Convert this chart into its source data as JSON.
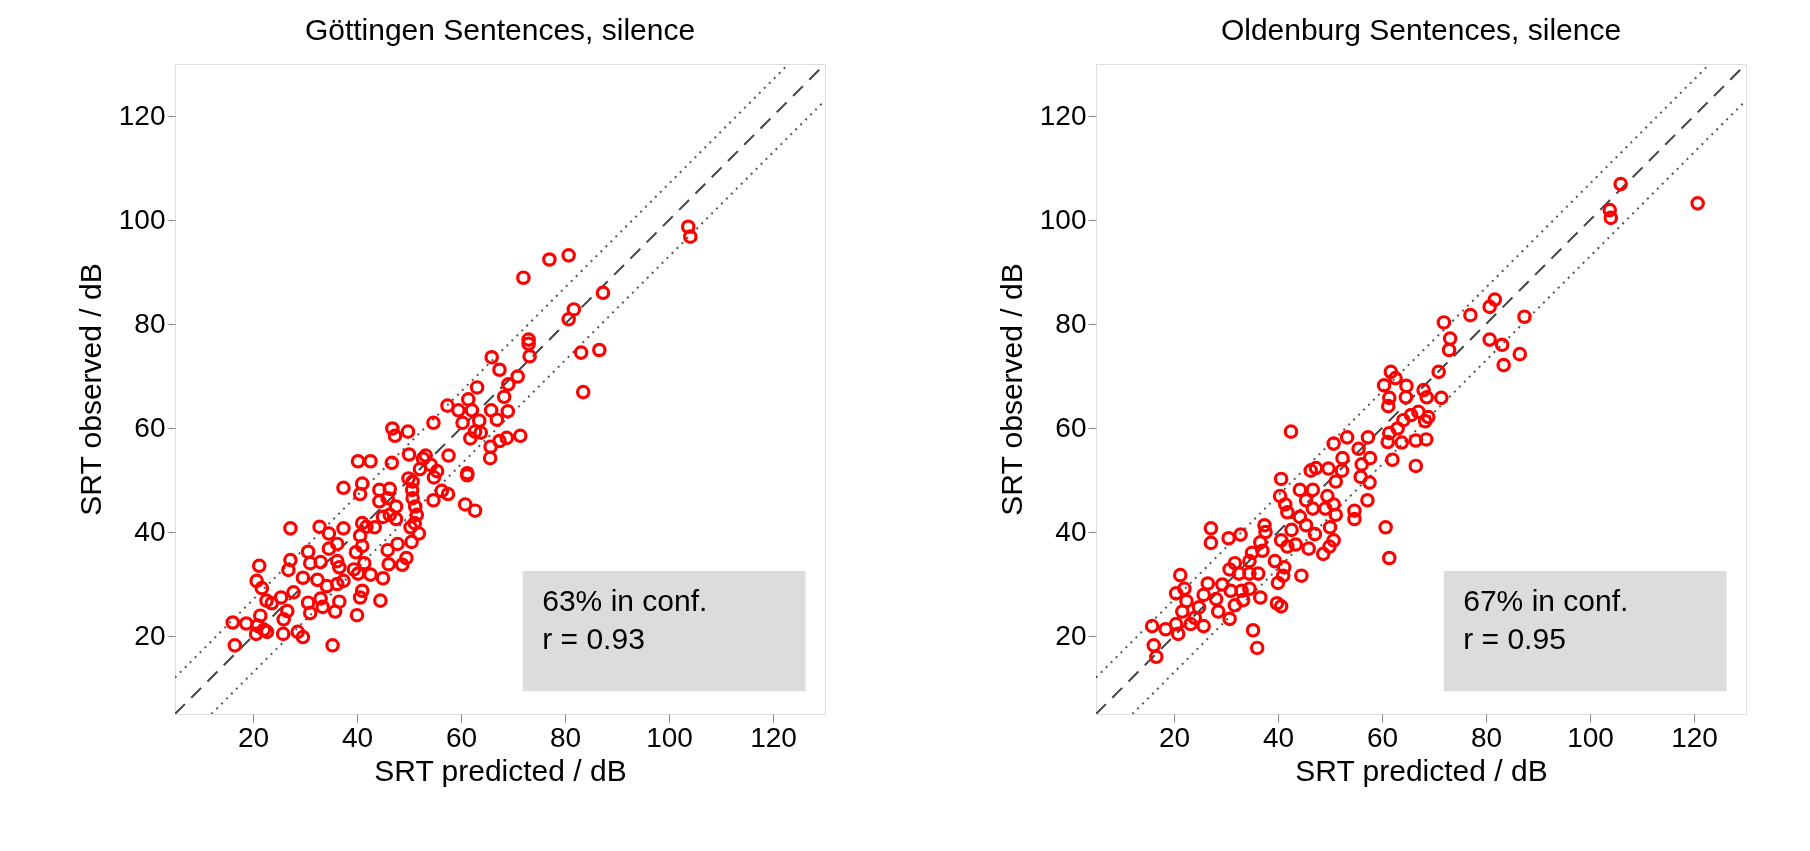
{
  "chart_data": [
    {
      "type": "scatter",
      "title": "Göttingen Sentences, silence",
      "xlabel": "SRT predicted / dB",
      "ylabel": "SRT observed / dB",
      "xlim": [
        5,
        130
      ],
      "ylim": [
        5,
        130
      ],
      "xticks": [
        20,
        40,
        60,
        80,
        100,
        120
      ],
      "yticks": [
        20,
        40,
        60,
        80,
        100,
        120
      ],
      "grid": false,
      "annotations": [
        "63% in conf.\nr =  0.93"
      ],
      "series": [
        {
          "type": "line",
          "color": "#444444",
          "line_style": "dashed",
          "x": [
            5,
            130
          ],
          "values": [
            5,
            130
          ]
        },
        {
          "type": "line",
          "color": "#555555",
          "line_style": "dotted",
          "x": [
            5,
            123
          ],
          "values": [
            12,
            130
          ]
        },
        {
          "type": "line",
          "color": "#555555",
          "line_style": "dotted",
          "x": [
            12,
            130
          ],
          "values": [
            5,
            123
          ]
        },
        {
          "type": "scatter",
          "color": "#ff0000",
          "marker": "circle",
          "x": [
            103.7,
            104.1,
            77.0,
            80.7,
            72.0,
            87.3,
            81.7,
            80.7,
            73.0,
            73.0,
            73.2,
            83.1,
            86.6,
            83.5,
            65.9,
            67.4,
            70.9,
            69.1,
            63.1,
            68.3,
            57.4,
            61.4,
            59.5,
            62.1,
            60.3,
            63.5,
            62.7,
            61.8,
            63.8,
            65.8,
            69.0,
            66.9,
            71.4,
            68.8,
            67.4,
            65.7,
            65.6,
            54.7,
            46.8,
            47.3,
            49.8,
            40.2,
            42.6,
            46.7,
            50.0,
            52.7,
            53.2,
            57.6,
            54.2,
            55.4,
            52.1,
            49.9,
            50.7,
            54.8,
            61.2,
            61.2,
            41.0,
            37.4,
            40.6,
            44.3,
            46.3,
            45.9,
            44.3,
            47.5,
            50.6,
            50.7,
            51.2,
            54.7,
            56.3,
            57.5,
            60.8,
            62.7,
            46.3,
            45.0,
            47.5,
            51.5,
            51.1,
            50.3,
            51.9,
            50.5,
            47.8,
            45.9,
            49.5,
            48.7,
            46.1,
            45.0,
            44.5,
            27.2,
            32.8,
            34.6,
            37.4,
            41.0,
            41.8,
            43.4,
            40.6,
            39.8,
            41.0,
            34.6,
            36.2,
            30.6,
            27.2,
            31.0,
            33.0,
            36.2,
            36.6,
            41.4,
            39.4,
            40.2,
            42.6,
            37.4,
            36.2,
            29.6,
            32.4,
            26.8,
            21.2,
            20.7,
            21.7,
            22.6,
            25.4,
            27.8,
            30.6,
            33.0,
            34.2,
            36.6,
            41.0,
            40.6,
            40.0,
            35.8,
            33.4,
            31.0,
            25.9,
            26.6,
            21.4,
            20.9,
            22.1,
            20.6,
            22.7,
            25.8,
            28.6,
            29.6,
            16.1,
            18.7,
            16.5,
            35.3,
            23.6
          ],
          "values": [
            98.7,
            96.8,
            92.4,
            93.2,
            88.9,
            86.0,
            82.8,
            80.9,
            77.0,
            76.2,
            73.8,
            74.5,
            75.0,
            66.9,
            73.6,
            71.2,
            69.9,
            68.4,
            67.8,
            66.0,
            64.3,
            65.5,
            63.4,
            63.4,
            61.0,
            61.4,
            59.3,
            58.0,
            59.1,
            63.4,
            63.2,
            61.6,
            58.5,
            58.1,
            57.5,
            56.4,
            54.2,
            61.0,
            59.9,
            58.5,
            59.3,
            53.6,
            53.6,
            53.3,
            54.9,
            54.1,
            54.7,
            54.7,
            52.9,
            51.7,
            52.1,
            50.3,
            49.7,
            50.5,
            51.3,
            50.9,
            49.3,
            48.5,
            47.3,
            48.1,
            48.3,
            46.5,
            45.9,
            44.9,
            48.1,
            46.5,
            44.9,
            46.1,
            47.9,
            47.3,
            45.3,
            44.1,
            43.3,
            42.9,
            42.5,
            43.3,
            41.7,
            40.9,
            39.7,
            38.1,
            37.7,
            36.5,
            35.0,
            33.7,
            33.8,
            31.1,
            26.8,
            40.7,
            41.0,
            39.7,
            40.7,
            41.7,
            41.0,
            40.9,
            39.3,
            36.1,
            37.3,
            36.8,
            37.7,
            36.2,
            34.6,
            34.0,
            34.2,
            34.4,
            33.2,
            34.0,
            32.8,
            32.0,
            31.8,
            30.6,
            30.0,
            31.2,
            30.8,
            32.7,
            33.5,
            30.6,
            29.2,
            26.8,
            27.4,
            28.4,
            26.4,
            27.2,
            29.6,
            26.6,
            28.7,
            27.4,
            24.0,
            24.7,
            25.6,
            24.4,
            23.2,
            24.8,
            23.9,
            22.0,
            21.2,
            20.4,
            20.8,
            20.4,
            20.8,
            19.8,
            22.6,
            22.4,
            18.2,
            18.2,
            26.3
          ]
        }
      ]
    },
    {
      "type": "scatter",
      "title": "Oldenburg Sentences, silence",
      "xlabel": "SRT predicted / dB",
      "ylabel": "SRT observed / dB",
      "xlim": [
        5,
        130
      ],
      "ylim": [
        5,
        130
      ],
      "xticks": [
        20,
        40,
        60,
        80,
        100,
        120
      ],
      "yticks": [
        20,
        40,
        60,
        80,
        100,
        120
      ],
      "grid": false,
      "annotations": [
        "67% in conf.\nr =  0.95"
      ],
      "series": [
        {
          "type": "line",
          "color": "#444444",
          "line_style": "dashed",
          "x": [
            5,
            130
          ],
          "values": [
            5,
            130
          ]
        },
        {
          "type": "line",
          "color": "#555555",
          "line_style": "dotted",
          "x": [
            5,
            123
          ],
          "values": [
            12,
            130
          ]
        },
        {
          "type": "line",
          "color": "#555555",
          "line_style": "dotted",
          "x": [
            12,
            130
          ],
          "values": [
            5,
            123
          ]
        },
        {
          "type": "scatter",
          "color": "#ff0000",
          "marker": "circle",
          "x": [
            105.9,
            103.8,
            104.0,
            120.7,
            81.7,
            80.7,
            77.0,
            87.4,
            71.9,
            73.1,
            72.9,
            80.7,
            83.1,
            86.5,
            83.4,
            70.9,
            61.7,
            62.6,
            60.4,
            64.7,
            68.0,
            61.4,
            64.6,
            68.6,
            71.4,
            61.2,
            65.6,
            67.0,
            68.9,
            68.3,
            64.1,
            63.0,
            61.4,
            61.1,
            63.8,
            66.5,
            68.5,
            62.0,
            66.5,
            42.5,
            50.7,
            53.3,
            57.3,
            55.5,
            52.4,
            57.7,
            56.1,
            55.9,
            57.6,
            57.2,
            54.7,
            54.7,
            46.3,
            47.3,
            49.7,
            52.3,
            51.1,
            40.6,
            44.2,
            46.7,
            40.4,
            41.4,
            41.8,
            45.4,
            46.7,
            49.5,
            50.7,
            51.1,
            49.1,
            44.2,
            45.4,
            47.1,
            42.6,
            43.4,
            40.6,
            41.8,
            45.9,
            48.7,
            50.7,
            49.9,
            50.0,
            60.7,
            61.4,
            37.4,
            37.6,
            32.8,
            30.5,
            27.1,
            27.1,
            36.6,
            35.0,
            37.0,
            39.4,
            34.5,
            31.7,
            30.7,
            32.5,
            34.5,
            36.2,
            41.2,
            41.0,
            44.5,
            40.0,
            39.8,
            40.6,
            21.2,
            20.4,
            22.0,
            22.4,
            21.6,
            26.5,
            29.3,
            25.7,
            28.1,
            30.9,
            33.0,
            34.5,
            36.6,
            33.3,
            31.7,
            28.5,
            24.8,
            24.0,
            25.7,
            23.2,
            20.4,
            20.8,
            18.4,
            15.8,
            16.1,
            16.6,
            30.7,
            35.2,
            36.0
          ],
          "values": [
            106.9,
            101.9,
            100.4,
            103.2,
            84.7,
            83.3,
            81.7,
            81.4,
            80.3,
            77.2,
            75.0,
            77.0,
            76.0,
            74.2,
            72.1,
            70.8,
            70.8,
            69.6,
            68.2,
            68.1,
            67.3,
            65.8,
            65.9,
            65.9,
            65.8,
            64.2,
            62.5,
            63.1,
            62.1,
            61.3,
            61.5,
            59.9,
            59.0,
            57.3,
            57.2,
            57.6,
            57.8,
            53.9,
            52.7,
            59.3,
            57.0,
            58.2,
            58.2,
            56.0,
            54.2,
            54.2,
            53.0,
            50.6,
            49.5,
            46.1,
            44.1,
            42.5,
            51.8,
            52.3,
            52.2,
            51.8,
            49.7,
            50.2,
            48.1,
            48.1,
            46.9,
            45.3,
            43.8,
            46.1,
            44.5,
            46.9,
            45.3,
            43.3,
            44.5,
            42.9,
            41.3,
            39.6,
            40.4,
            37.6,
            38.4,
            37.2,
            36.8,
            35.8,
            38.4,
            37.2,
            40.9,
            40.9,
            35.0,
            41.3,
            40.0,
            39.5,
            38.8,
            40.7,
            37.9,
            38.0,
            36.0,
            36.4,
            34.4,
            34.4,
            34.0,
            32.8,
            32.0,
            32.0,
            32.0,
            33.2,
            31.6,
            31.6,
            30.2,
            26.3,
            25.7,
            31.7,
            28.2,
            29.1,
            26.7,
            24.7,
            30.1,
            29.9,
            27.9,
            27.1,
            28.7,
            28.7,
            29.1,
            27.4,
            26.9,
            25.9,
            24.7,
            25.5,
            23.5,
            21.9,
            22.3,
            22.3,
            20.4,
            21.3,
            21.9,
            18.2,
            16.0,
            23.3,
            21.1,
            17.7
          ]
        }
      ]
    }
  ]
}
